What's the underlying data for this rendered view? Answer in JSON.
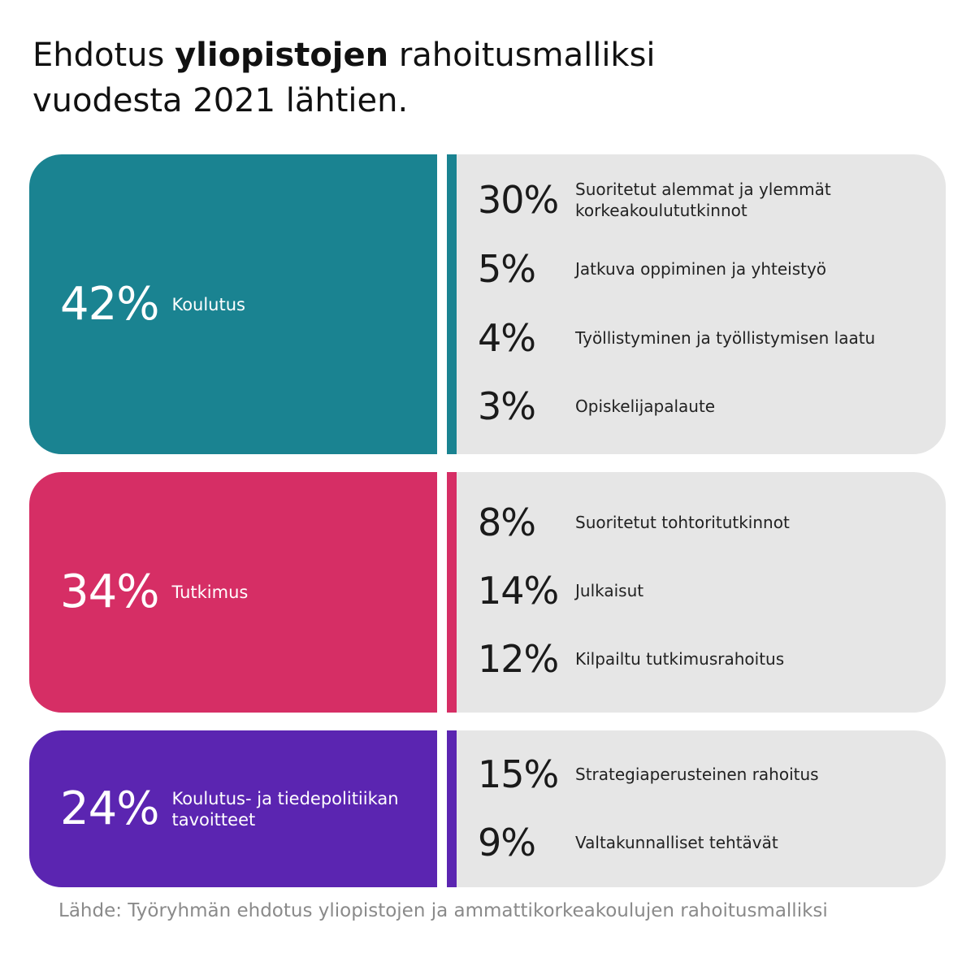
{
  "title": {
    "part1": "Ehdotus ",
    "bold": "yliopistojen",
    "part2": " rahoitusmalliksi",
    "line2": "vuodesta 2021 lähtien."
  },
  "source": "Lähde: Työryhmän ehdotus yliopistojen ja ammattikorkeakoulujen rahoitusmalliksi",
  "chart_data": {
    "type": "table",
    "title": "Ehdotus yliopistojen rahoitusmalliksi vuodesta 2021 lähtien.",
    "groups": [
      {
        "pct_label": "42%",
        "value": 42,
        "label": "Koulutus",
        "color": "#1a8391",
        "items": [
          {
            "pct_label": "30%",
            "value": 30,
            "label": "Suoritetut alemmat ja ylemmät korkeakoulututkinnot"
          },
          {
            "pct_label": "5%",
            "value": 5,
            "label": "Jatkuva oppiminen ja yhteistyö"
          },
          {
            "pct_label": "4%",
            "value": 4,
            "label": "Työllistyminen ja työllistymisen laatu"
          },
          {
            "pct_label": "3%",
            "value": 3,
            "label": "Opiskelijapalaute"
          }
        ]
      },
      {
        "pct_label": "34%",
        "value": 34,
        "label": "Tutkimus",
        "color": "#d62e65",
        "items": [
          {
            "pct_label": "8%",
            "value": 8,
            "label": "Suoritetut tohtoritutkinnot"
          },
          {
            "pct_label": "14%",
            "value": 14,
            "label": "Julkaisut"
          },
          {
            "pct_label": "12%",
            "value": 12,
            "label": "Kilpailtu tutkimusrahoitus"
          }
        ]
      },
      {
        "pct_label": "24%",
        "value": 24,
        "label": "Koulutus- ja tiedepolitiikan tavoitteet",
        "color": "#5b25b1",
        "items": [
          {
            "pct_label": "15%",
            "value": 15,
            "label": "Strategiaperusteinen rahoitus"
          },
          {
            "pct_label": "9%",
            "value": 9,
            "label": "Valtakunnalliset tehtävät"
          }
        ]
      }
    ]
  }
}
